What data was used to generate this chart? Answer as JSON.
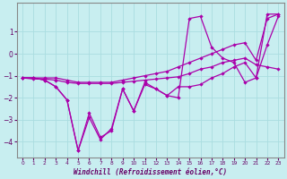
{
  "xlabel": "Windchill (Refroidissement éolien,°C)",
  "background_color": "#c8eef0",
  "grid_color": "#aadde0",
  "line_color": "#aa00aa",
  "spine_color": "#888888",
  "xlim": [
    -0.5,
    23.5
  ],
  "ylim": [
    -4.7,
    2.3
  ],
  "xticks": [
    0,
    1,
    2,
    3,
    4,
    5,
    6,
    7,
    8,
    9,
    10,
    11,
    12,
    13,
    14,
    15,
    16,
    17,
    18,
    19,
    20,
    21,
    22,
    23
  ],
  "yticks": [
    -4,
    -3,
    -2,
    -1,
    0,
    1
  ],
  "series": [
    {
      "x": [
        0,
        1,
        2,
        3,
        4,
        5,
        6,
        7,
        8,
        9,
        10,
        11,
        12,
        13,
        14,
        15,
        16,
        17,
        18,
        19,
        20,
        21,
        22,
        23
      ],
      "y": [
        -1.1,
        -1.15,
        -1.15,
        -1.2,
        -1.3,
        -1.35,
        -1.35,
        -1.35,
        -1.35,
        -1.3,
        -1.25,
        -1.2,
        -1.15,
        -1.1,
        -1.05,
        -0.9,
        -0.7,
        -0.6,
        -0.4,
        -0.3,
        -0.2,
        -0.5,
        -0.6,
        -0.7
      ]
    },
    {
      "x": [
        0,
        1,
        2,
        3,
        4,
        5,
        6,
        7,
        8,
        9,
        10,
        11,
        12,
        13,
        14,
        15,
        16,
        17,
        18,
        19,
        20,
        21,
        22,
        23
      ],
      "y": [
        -1.1,
        -1.1,
        -1.1,
        -1.1,
        -1.2,
        -1.3,
        -1.3,
        -1.3,
        -1.3,
        -1.2,
        -1.1,
        -1.0,
        -0.9,
        -0.8,
        -0.6,
        -0.4,
        -0.2,
        0.0,
        0.2,
        0.4,
        0.5,
        -0.3,
        1.6,
        1.8
      ]
    },
    {
      "x": [
        0,
        1,
        2,
        3,
        4,
        5,
        6,
        7,
        8,
        9,
        10,
        11,
        12,
        13,
        14,
        15,
        16,
        17,
        18,
        19,
        20,
        21,
        22,
        23
      ],
      "y": [
        -1.1,
        -1.1,
        -1.2,
        -1.5,
        -2.1,
        -4.4,
        -2.9,
        -3.9,
        -3.4,
        -1.6,
        -2.6,
        -1.3,
        -1.6,
        -1.9,
        -2.0,
        1.6,
        1.7,
        0.3,
        -0.2,
        -0.4,
        -1.3,
        -1.1,
        1.8,
        1.8
      ]
    },
    {
      "x": [
        0,
        1,
        2,
        3,
        4,
        5,
        6,
        7,
        8,
        9,
        10,
        11,
        12,
        13,
        14,
        15,
        16,
        17,
        18,
        19,
        20,
        21,
        22,
        23
      ],
      "y": [
        -1.1,
        -1.1,
        -1.2,
        -1.5,
        -2.1,
        -4.4,
        -2.7,
        -3.8,
        -3.5,
        -1.6,
        -2.6,
        -1.4,
        -1.6,
        -1.9,
        -1.5,
        -1.5,
        -1.4,
        -1.1,
        -0.9,
        -0.6,
        -0.4,
        -1.1,
        0.4,
        1.7
      ]
    }
  ]
}
